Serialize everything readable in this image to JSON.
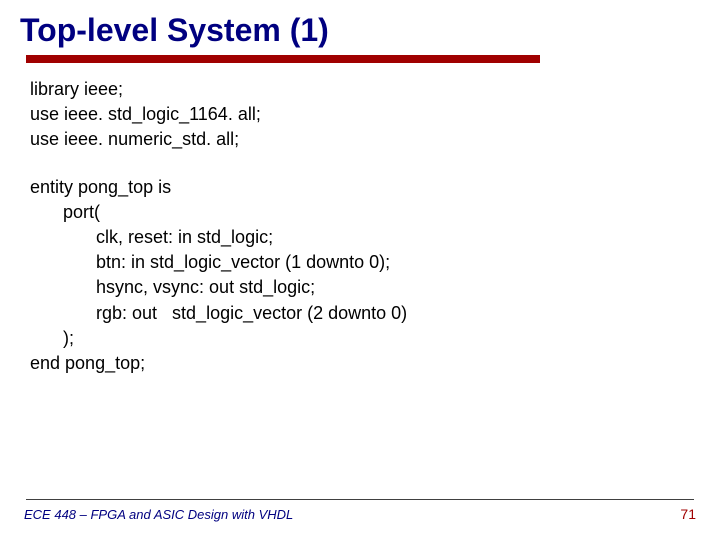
{
  "title": "Top-level System (1)",
  "colors": {
    "title_color": "#000080",
    "divider_color": "#a00000",
    "text_color": "#000000",
    "footer_text_color": "#000080",
    "page_num_color": "#a00000",
    "background": "#ffffff",
    "footer_line_color": "#404040"
  },
  "typography": {
    "title_fontsize": 32,
    "title_weight": "bold",
    "code_fontsize": 18,
    "footer_fontsize": 13,
    "footer_style": "italic",
    "page_num_fontsize": 14,
    "font_family": "Arial"
  },
  "code": {
    "lines": [
      "library ieee;",
      "use ieee. std_logic_1164. all;",
      "use ieee. numeric_std. all;",
      "",
      "entity pong_top is",
      "   port(",
      "      clk, reset: in std_logic;",
      "      btn: in std_logic_vector (1 downto 0);",
      "      hsync, vsync: out std_logic;",
      "      rgb: out   std_logic_vector (2 downto 0)",
      "   );",
      "end pong_top;"
    ]
  },
  "footer": {
    "text": "ECE 448 – FPGA and ASIC Design with VHDL",
    "page_number": "71"
  }
}
